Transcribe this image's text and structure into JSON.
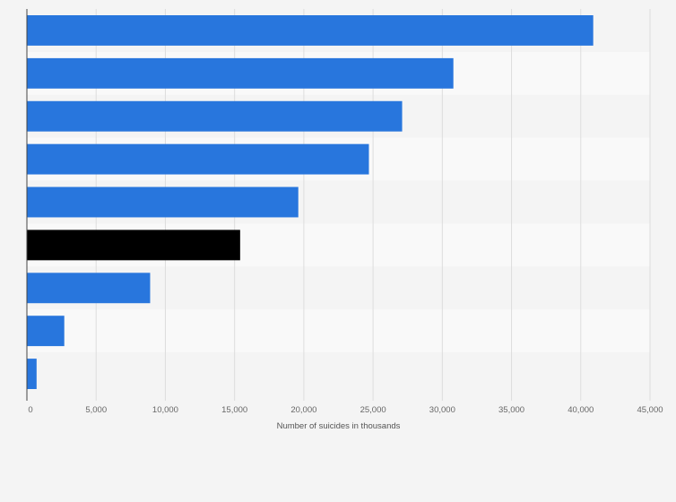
{
  "chart_data": {
    "type": "bar",
    "orientation": "horizontal",
    "title": "",
    "xlabel": "Number of suicides in thousands",
    "ylabel": "",
    "xlim": [
      0,
      45000
    ],
    "xticks": [
      0,
      5000,
      10000,
      15000,
      20000,
      25000,
      30000,
      35000,
      40000,
      45000
    ],
    "xtick_labels": [
      "0",
      "5,000",
      "10,000",
      "15,000",
      "20,000",
      "25,000",
      "30,000",
      "35,000",
      "40,000",
      "45,000"
    ],
    "categories": [
      "",
      "",
      "",
      "",
      "",
      "",
      "",
      "",
      ""
    ],
    "values": [
      40900,
      30800,
      27100,
      24700,
      19600,
      15400,
      8900,
      2700,
      700
    ],
    "highlight_index": 5,
    "grid": true,
    "legend": "none",
    "colors": {
      "bar": "#2876dd",
      "highlight": "#000000",
      "band_dark": "#f4f4f4",
      "band_light": "#f9f9f9",
      "grid": "#dddddd",
      "axis": "#444444"
    }
  }
}
